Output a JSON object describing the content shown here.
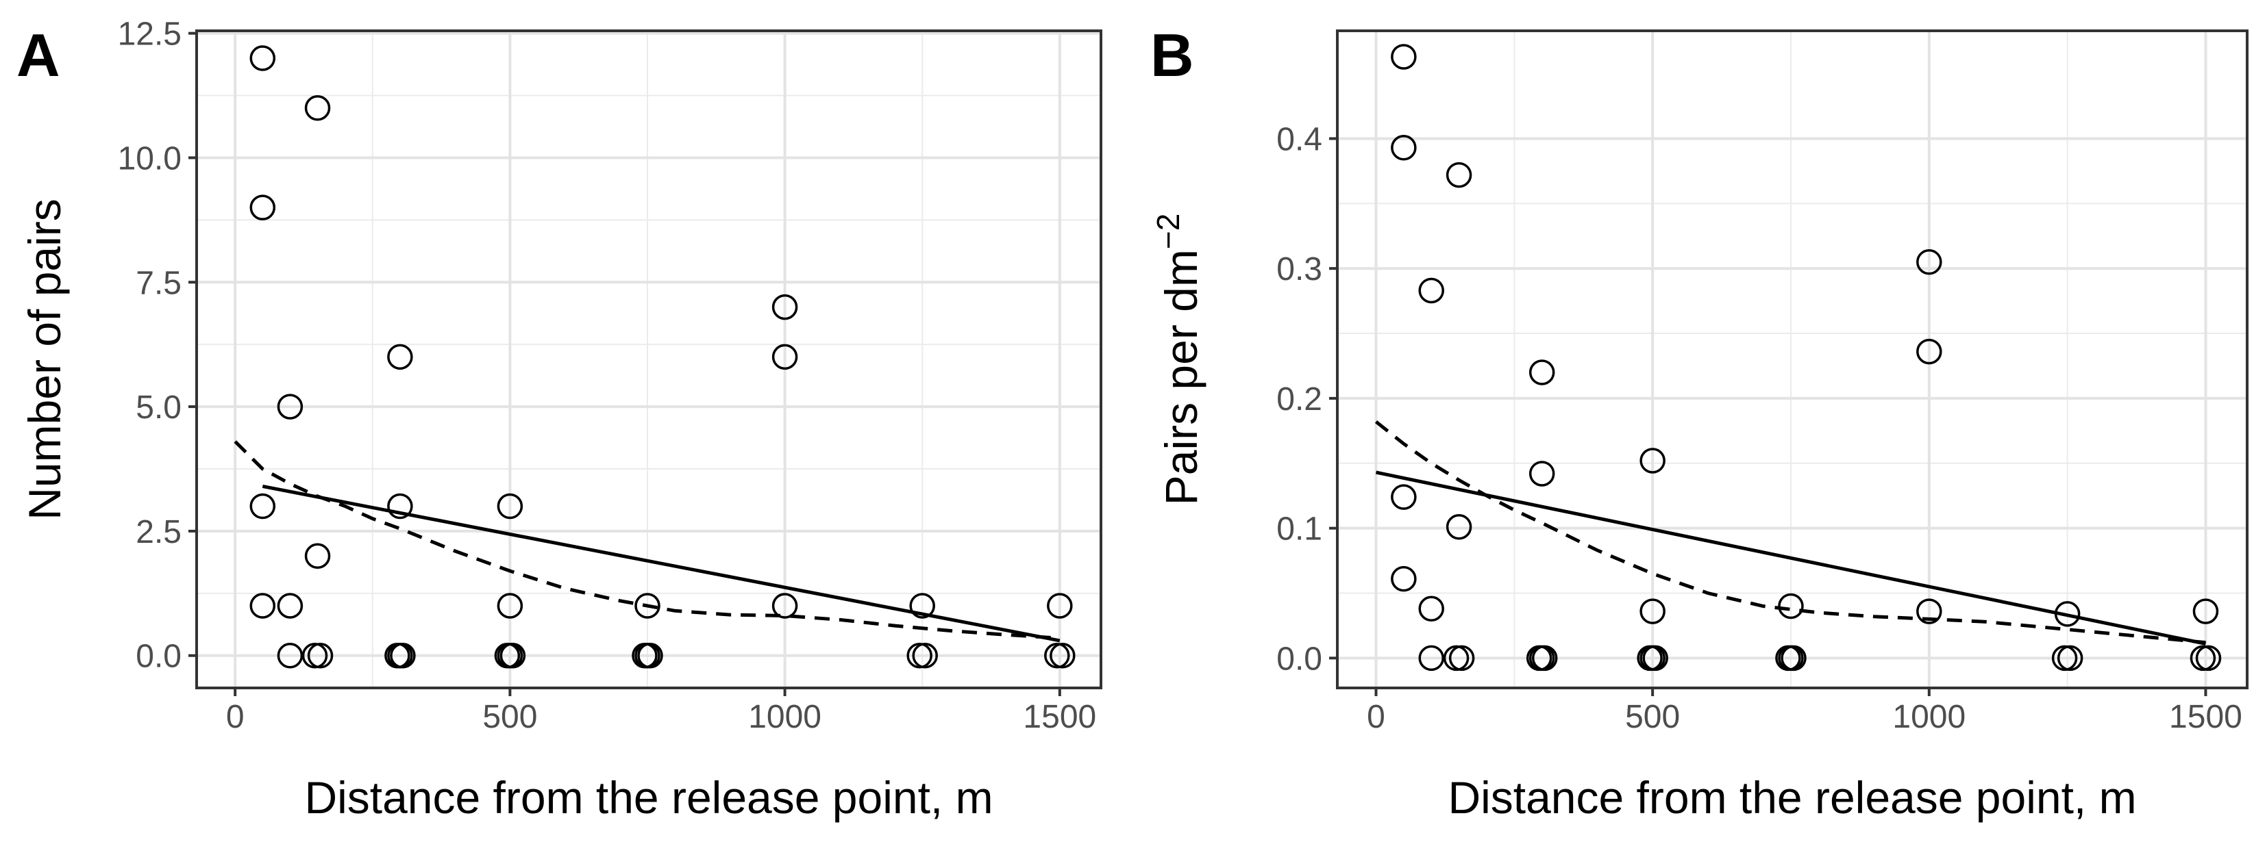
{
  "chart_data": [
    {
      "panel": "A",
      "type": "scatter",
      "xlabel": "Distance from the release point, m",
      "ylabel": "Number of pairs",
      "xlim": [
        -70,
        1575
      ],
      "ylim": [
        -0.65,
        12.55
      ],
      "xticks": [
        0,
        500,
        1000,
        1500
      ],
      "xtick_labels": [
        "0",
        "500",
        "1000",
        "1500"
      ],
      "yticks": [
        0,
        2.5,
        5,
        7.5,
        10,
        12.5
      ],
      "ytick_labels": [
        "0.0",
        "2.5",
        "5.0",
        "7.5",
        "10.0",
        "12.5"
      ],
      "grid": true,
      "points": [
        {
          "x": 50,
          "y": 12
        },
        {
          "x": 50,
          "y": 9
        },
        {
          "x": 50,
          "y": 3
        },
        {
          "x": 50,
          "y": 1
        },
        {
          "x": 100,
          "y": 5
        },
        {
          "x": 100,
          "y": 1
        },
        {
          "x": 100,
          "y": 0
        },
        {
          "x": 150,
          "y": 11
        },
        {
          "x": 150,
          "y": 2
        },
        {
          "x": 145,
          "y": 0
        },
        {
          "x": 155,
          "y": 0
        },
        {
          "x": 300,
          "y": 6
        },
        {
          "x": 300,
          "y": 3
        },
        {
          "x": 295,
          "y": 0
        },
        {
          "x": 300,
          "y": 0
        },
        {
          "x": 305,
          "y": 0
        },
        {
          "x": 500,
          "y": 3
        },
        {
          "x": 500,
          "y": 1
        },
        {
          "x": 495,
          "y": 0
        },
        {
          "x": 500,
          "y": 0
        },
        {
          "x": 505,
          "y": 0
        },
        {
          "x": 750,
          "y": 1
        },
        {
          "x": 745,
          "y": 0
        },
        {
          "x": 750,
          "y": 0
        },
        {
          "x": 755,
          "y": 0
        },
        {
          "x": 1000,
          "y": 7
        },
        {
          "x": 1000,
          "y": 6
        },
        {
          "x": 1000,
          "y": 1
        },
        {
          "x": 1250,
          "y": 1
        },
        {
          "x": 1245,
          "y": 0
        },
        {
          "x": 1255,
          "y": 0
        },
        {
          "x": 1500,
          "y": 1
        },
        {
          "x": 1495,
          "y": 0
        },
        {
          "x": 1505,
          "y": 0
        }
      ],
      "linear_fit": {
        "x": [
          50,
          1500
        ],
        "y": [
          3.4,
          0.3
        ]
      },
      "smooth_fit": {
        "x": [
          0,
          50,
          100,
          150,
          200,
          250,
          300,
          400,
          500,
          600,
          700,
          800,
          900,
          1000,
          1100,
          1200,
          1300,
          1400,
          1500
        ],
        "y": [
          4.3,
          3.75,
          3.45,
          3.2,
          3.0,
          2.75,
          2.55,
          2.1,
          1.7,
          1.35,
          1.1,
          0.9,
          0.82,
          0.8,
          0.72,
          0.6,
          0.5,
          0.42,
          0.35
        ]
      }
    },
    {
      "panel": "B",
      "type": "scatter",
      "xlabel": "Distance from the release point, m",
      "ylabel": "Pairs per dm",
      "ylabel_superscript": "−2",
      "xlim": [
        -70,
        1575
      ],
      "ylim": [
        -0.023,
        0.483
      ],
      "xticks": [
        0,
        500,
        1000,
        1500
      ],
      "xtick_labels": [
        "0",
        "500",
        "1000",
        "1500"
      ],
      "yticks": [
        0,
        0.1,
        0.2,
        0.3,
        0.4
      ],
      "ytick_labels": [
        "0.0",
        "0.1",
        "0.2",
        "0.3",
        "0.4"
      ],
      "grid": true,
      "points": [
        {
          "x": 50,
          "y": 0.463
        },
        {
          "x": 50,
          "y": 0.393
        },
        {
          "x": 50,
          "y": 0.124
        },
        {
          "x": 50,
          "y": 0.061
        },
        {
          "x": 100,
          "y": 0.283
        },
        {
          "x": 100,
          "y": 0.038
        },
        {
          "x": 100,
          "y": 0
        },
        {
          "x": 150,
          "y": 0.372
        },
        {
          "x": 150,
          "y": 0.101
        },
        {
          "x": 145,
          "y": 0
        },
        {
          "x": 155,
          "y": 0
        },
        {
          "x": 300,
          "y": 0.22
        },
        {
          "x": 300,
          "y": 0.142
        },
        {
          "x": 295,
          "y": 0
        },
        {
          "x": 300,
          "y": 0
        },
        {
          "x": 305,
          "y": 0
        },
        {
          "x": 500,
          "y": 0.152
        },
        {
          "x": 500,
          "y": 0.036
        },
        {
          "x": 495,
          "y": 0
        },
        {
          "x": 500,
          "y": 0
        },
        {
          "x": 505,
          "y": 0
        },
        {
          "x": 750,
          "y": 0.04
        },
        {
          "x": 745,
          "y": 0
        },
        {
          "x": 750,
          "y": 0
        },
        {
          "x": 755,
          "y": 0
        },
        {
          "x": 1000,
          "y": 0.305
        },
        {
          "x": 1000,
          "y": 0.236
        },
        {
          "x": 1000,
          "y": 0.036
        },
        {
          "x": 1250,
          "y": 0.034
        },
        {
          "x": 1245,
          "y": 0
        },
        {
          "x": 1255,
          "y": 0
        },
        {
          "x": 1500,
          "y": 0.036
        },
        {
          "x": 1495,
          "y": 0
        },
        {
          "x": 1505,
          "y": 0
        }
      ],
      "linear_fit": {
        "x": [
          0,
          1500
        ],
        "y": [
          0.143,
          0.011
        ]
      },
      "smooth_fit": {
        "x": [
          0,
          50,
          100,
          150,
          200,
          250,
          300,
          400,
          500,
          600,
          700,
          800,
          900,
          1000,
          1100,
          1200,
          1300,
          1400,
          1500
        ],
        "y": [
          0.182,
          0.165,
          0.15,
          0.137,
          0.125,
          0.114,
          0.104,
          0.083,
          0.065,
          0.05,
          0.04,
          0.035,
          0.032,
          0.03,
          0.028,
          0.024,
          0.02,
          0.016,
          0.012
        ]
      }
    }
  ]
}
